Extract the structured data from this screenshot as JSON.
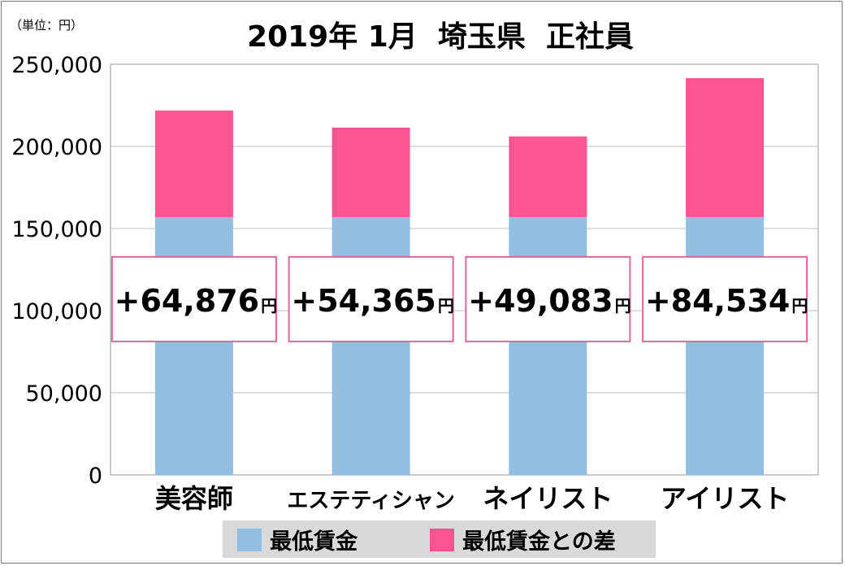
{
  "unit_label": "（単位：円）",
  "chart_data": {
    "type": "bar",
    "stacked": true,
    "title": "2019年 1月  埼玉県  正社員",
    "xlabel": "",
    "ylabel": "",
    "ylim": [
      0,
      250000
    ],
    "yticks": [
      0,
      50000,
      100000,
      150000,
      200000,
      250000
    ],
    "ytick_labels": [
      "0",
      "50,000",
      "100,000",
      "150,000",
      "200,000",
      "250,000"
    ],
    "grid": true,
    "legend_position": "bottom",
    "categories": [
      "美容師",
      "エステティシャン",
      "ネイリスト",
      "アイリスト"
    ],
    "series": [
      {
        "name": "最低賃金",
        "color": "#92bee0",
        "values": [
          157000,
          157000,
          157000,
          157000
        ]
      },
      {
        "name": "最低賃金との差",
        "color": "#fc5490",
        "values": [
          64876,
          54365,
          49083,
          84534
        ]
      }
    ],
    "annotations": [
      {
        "number": "+64,876",
        "unit": "円"
      },
      {
        "number": "+54,365",
        "unit": "円"
      },
      {
        "number": "+49,083",
        "unit": "円"
      },
      {
        "number": "+84,534",
        "unit": "円"
      }
    ],
    "annotation_value": 107000
  }
}
